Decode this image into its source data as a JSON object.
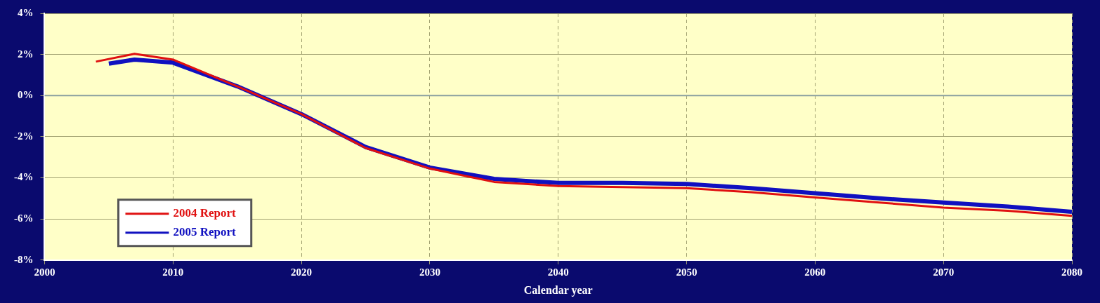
{
  "chart_data": {
    "type": "line",
    "xlabel": "Calendar year",
    "xlim": [
      2000,
      2080
    ],
    "xticks": [
      2000,
      2010,
      2020,
      2030,
      2040,
      2050,
      2060,
      2070,
      2080
    ],
    "ylim": [
      -8,
      4
    ],
    "yticks": [
      {
        "value": -8,
        "label": "-8%"
      },
      {
        "value": -6,
        "label": "-6%"
      },
      {
        "value": -4,
        "label": "-4%"
      },
      {
        "value": -2,
        "label": "-2%"
      },
      {
        "value": 0,
        "label": "0%"
      },
      {
        "value": 2,
        "label": "2%"
      },
      {
        "value": 4,
        "label": "4%"
      }
    ],
    "grid": true,
    "ref_lines": [
      {
        "axis": "y",
        "value": 0,
        "color": "#8aa0a0",
        "line_style": "solid"
      }
    ],
    "legend": "bottom left",
    "marker": "none",
    "line_style": "solid",
    "series": [
      {
        "name": "2004 Report",
        "color": "#e01010",
        "x": [
          2004,
          2007,
          2010,
          2015,
          2020,
          2025,
          2030,
          2035,
          2040,
          2045,
          2050,
          2055,
          2060,
          2065,
          2070,
          2075,
          2080
        ],
        "values": [
          1.65,
          2.03,
          1.75,
          0.45,
          -0.9,
          -2.55,
          -3.55,
          -4.2,
          -4.4,
          -4.45,
          -4.5,
          -4.7,
          -4.95,
          -5.2,
          -5.45,
          -5.6,
          -5.85
        ]
      },
      {
        "name": "2005 Report",
        "color": "#1010c0",
        "x": [
          2005,
          2007,
          2010,
          2015,
          2020,
          2025,
          2030,
          2035,
          2040,
          2045,
          2050,
          2055,
          2060,
          2065,
          2070,
          2075,
          2080
        ],
        "values": [
          1.55,
          1.75,
          1.6,
          0.45,
          -0.9,
          -2.5,
          -3.5,
          -4.05,
          -4.25,
          -4.25,
          -4.3,
          -4.5,
          -4.75,
          -5.0,
          -5.2,
          -5.4,
          -5.65
        ]
      }
    ]
  }
}
